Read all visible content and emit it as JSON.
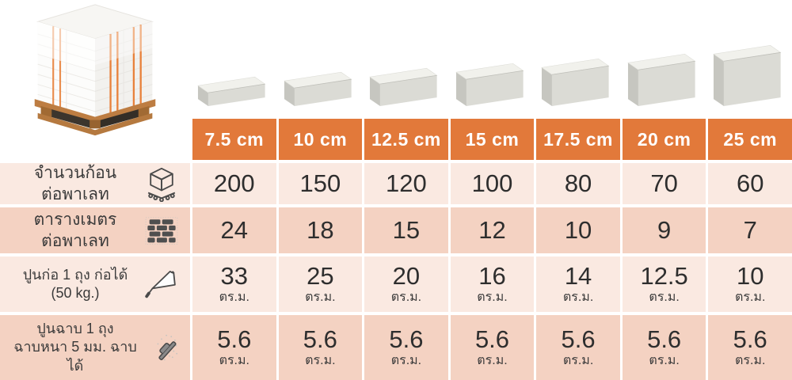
{
  "title": "aac-block-pallet-spec-table",
  "colors": {
    "header_bg": "#E2793A",
    "row_light": "#FAE9E1",
    "row_dark": "#F4D2C2",
    "header_text": "#FFFFFF",
    "value_text": "#2E2E2E",
    "label_text": "#3A3A3A",
    "strap_orange": "#E8823C",
    "wood": "#BD7D42"
  },
  "images": {
    "pallet_image": "pallet-of-white-aac-blocks-with-orange-straps",
    "block_image": "aac-block-3d-render"
  },
  "chart_data": {
    "type": "table",
    "title": "",
    "columns": [
      "7.5 cm",
      "10 cm",
      "12.5 cm",
      "15 cm",
      "17.5 cm",
      "20 cm",
      "25 cm"
    ],
    "block_thickness_cm": [
      7.5,
      10,
      12.5,
      15,
      17.5,
      20,
      25
    ],
    "rows": [
      {
        "icon": "pallet-cube-icon",
        "label_lines": [
          "จำนวนก้อน",
          "ต่อพาเลท"
        ],
        "values": [
          "200",
          "150",
          "120",
          "100",
          "80",
          "70",
          "60"
        ],
        "unit": ""
      },
      {
        "icon": "brick-wall-icon",
        "label_lines": [
          "ตารางเมตร",
          "ต่อพาเลท"
        ],
        "values": [
          "24",
          "18",
          "15",
          "12",
          "10",
          "9",
          "7"
        ],
        "unit": ""
      },
      {
        "icon": "trowel-icon",
        "label_lines": [
          "ปูนก่อ 1 ถุง ก่อได้",
          "(50 kg.)"
        ],
        "values": [
          "33",
          "25",
          "20",
          "16",
          "14",
          "12.5",
          "10"
        ],
        "unit": "ตร.ม."
      },
      {
        "icon": "plaster-float-icon",
        "label_lines": [
          "ปูนฉาบ 1 ถุง",
          "ฉาบหนา 5 มม. ฉาบได้"
        ],
        "values": [
          "5.6",
          "5.6",
          "5.6",
          "5.6",
          "5.6",
          "5.6",
          "5.6"
        ],
        "unit": "ตร.ม."
      }
    ]
  }
}
